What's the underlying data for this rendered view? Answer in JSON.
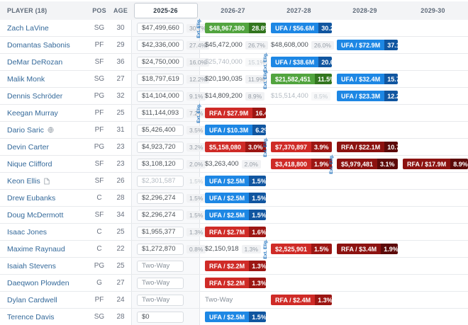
{
  "colors": {
    "ufa-main": "#1d87e4",
    "ufa-pct": "#1156a0",
    "opt-main": "#52a43f",
    "opt-pct": "#33761f",
    "rfa-main": "#cf2b27",
    "rfa-pct": "#9c1613",
    "rfa2-main": "#8c1210",
    "rfa2-pct": "#5c0a09",
    "link": "#34699a",
    "ext": "#1a6fbd",
    "header-bg": "#f3f4f6",
    "header-text": "#5f6b7a",
    "row-border": "#e8eaed",
    "active-col-bg": "#f8f9fb",
    "box-border": "#d8dce1",
    "muted": "#b3bac2",
    "value-text": "#4a5056",
    "pct-text": "#959da6"
  },
  "table": {
    "columns": [
      "PLAYER (18)",
      "POS",
      "AGE",
      "2025-26",
      "2026-27",
      "2027-28",
      "2028-29",
      "2029-30"
    ],
    "active_column": "2025-26",
    "ext_label": "Ext. Elig.",
    "rows": [
      {
        "player": "Zach LaVine",
        "pos": "SG",
        "age": "30",
        "icon": null,
        "years": [
          {
            "value": "$47,499,660",
            "pct": "30.7%",
            "style": "box",
            "ext": true
          },
          {
            "value": "$48,967,380",
            "pct": "28.8%",
            "style": "green"
          },
          {
            "value": "UFA / $56.6M",
            "pct": "30.2%",
            "style": "blue"
          },
          null,
          null
        ]
      },
      {
        "player": "Domantas Sabonis",
        "pos": "PF",
        "age": "29",
        "icon": null,
        "years": [
          {
            "value": "$42,336,000",
            "pct": "27.4%",
            "style": "box"
          },
          {
            "value": "$45,472,000",
            "pct": "26.7%",
            "style": "plain"
          },
          {
            "value": "$48,608,000",
            "pct": "26.0%",
            "style": "plain"
          },
          {
            "value": "UFA / $72.9M",
            "pct": "37.1%",
            "style": "blue"
          },
          null
        ]
      },
      {
        "player": "DeMar DeRozan",
        "pos": "SF",
        "age": "36",
        "icon": null,
        "years": [
          {
            "value": "$24,750,000",
            "pct": "16.0%",
            "style": "box"
          },
          {
            "value": "$25,740,000",
            "pct": "15.1%",
            "style": "muted",
            "ext": true
          },
          {
            "value": "UFA / $38.6M",
            "pct": "20.6%",
            "style": "blue"
          },
          null,
          null
        ]
      },
      {
        "player": "Malik Monk",
        "pos": "SG",
        "age": "27",
        "icon": null,
        "years": [
          {
            "value": "$18,797,619",
            "pct": "12.2%",
            "style": "box"
          },
          {
            "value": "$20,190,035",
            "pct": "11.9%",
            "style": "plain",
            "ext": true
          },
          {
            "value": "$21,582,451",
            "pct": "11.5%",
            "style": "green"
          },
          {
            "value": "UFA / $32.4M",
            "pct": "15.7%",
            "style": "blue"
          },
          null
        ]
      },
      {
        "player": "Dennis Schröder",
        "pos": "PG",
        "age": "32",
        "icon": null,
        "years": [
          {
            "value": "$14,104,000",
            "pct": "9.1%",
            "style": "box"
          },
          {
            "value": "$14,809,200",
            "pct": "8.9%",
            "style": "plain"
          },
          {
            "value": "$15,514,400",
            "pct": "8.5%",
            "style": "muted"
          },
          {
            "value": "UFA / $23.3M",
            "pct": "12.2%",
            "style": "blue"
          },
          null
        ]
      },
      {
        "player": "Keegan Murray",
        "pos": "PF",
        "age": "25",
        "icon": null,
        "years": [
          {
            "value": "$11,144,093",
            "pct": "7.2%",
            "style": "box",
            "ext": true
          },
          {
            "value": "RFA / $27.9M",
            "pct": "16.4%",
            "style": "red"
          },
          null,
          null,
          null
        ]
      },
      {
        "player": "Dario Saric",
        "pos": "PF",
        "age": "31",
        "icon": "globe-icon",
        "years": [
          {
            "value": "$5,426,400",
            "pct": "3.5%",
            "style": "box"
          },
          {
            "value": "UFA / $10.3M",
            "pct": "6.2%",
            "style": "blue"
          },
          null,
          null,
          null
        ]
      },
      {
        "player": "Devin Carter",
        "pos": "PG",
        "age": "23",
        "icon": null,
        "years": [
          {
            "value": "$4,923,720",
            "pct": "3.2%",
            "style": "box"
          },
          {
            "value": "$5,158,080",
            "pct": "3.0%",
            "style": "red",
            "ext": true
          },
          {
            "value": "$7,370,897",
            "pct": "3.9%",
            "style": "red"
          },
          {
            "value": "RFA / $22.1M",
            "pct": "10.7%",
            "style": "darkred"
          },
          null
        ]
      },
      {
        "player": "Nique Clifford",
        "pos": "SF",
        "age": "23",
        "icon": null,
        "years": [
          {
            "value": "$3,108,120",
            "pct": "2.0%",
            "style": "box"
          },
          {
            "value": "$3,263,400",
            "pct": "2.0%",
            "style": "plain"
          },
          {
            "value": "$3,418,800",
            "pct": "1.9%",
            "style": "red",
            "ext": true
          },
          {
            "value": "$5,979,481",
            "pct": "3.1%",
            "style": "darkred"
          },
          {
            "value": "RFA / $17.9M",
            "pct": "8.9%",
            "style": "darkred"
          }
        ]
      },
      {
        "player": "Keon Ellis",
        "pos": "SF",
        "age": "26",
        "icon": "contract-icon",
        "years": [
          {
            "value": "$2,301,587",
            "pct": "1.5%",
            "style": "box-muted"
          },
          {
            "value": "UFA / $2.5M",
            "pct": "1.5%",
            "style": "blue"
          },
          null,
          null,
          null
        ]
      },
      {
        "player": "Drew Eubanks",
        "pos": "C",
        "age": "28",
        "icon": null,
        "years": [
          {
            "value": "$2,296,274",
            "pct": "1.5%",
            "style": "box"
          },
          {
            "value": "UFA / $2.5M",
            "pct": "1.5%",
            "style": "blue"
          },
          null,
          null,
          null
        ]
      },
      {
        "player": "Doug McDermott",
        "pos": "SF",
        "age": "34",
        "icon": null,
        "years": [
          {
            "value": "$2,296,274",
            "pct": "1.5%",
            "style": "box"
          },
          {
            "value": "UFA / $2.5M",
            "pct": "1.5%",
            "style": "blue"
          },
          null,
          null,
          null
        ]
      },
      {
        "player": "Isaac Jones",
        "pos": "C",
        "age": "25",
        "icon": null,
        "years": [
          {
            "value": "$1,955,377",
            "pct": "1.3%",
            "style": "box"
          },
          {
            "value": "RFA / $2.7M",
            "pct": "1.6%",
            "style": "red"
          },
          null,
          null,
          null
        ]
      },
      {
        "player": "Maxime Raynaud",
        "pos": "C",
        "age": "22",
        "icon": null,
        "years": [
          {
            "value": "$1,272,870",
            "pct": "0.8%",
            "style": "box"
          },
          {
            "value": "$2,150,918",
            "pct": "1.3%",
            "style": "plain",
            "ext": true
          },
          {
            "value": "$2,525,901",
            "pct": "1.5%",
            "style": "red"
          },
          {
            "value": "RFA / $3.4M",
            "pct": "1.9%",
            "style": "darkred"
          },
          null
        ]
      },
      {
        "player": "Isaiah Stevens",
        "pos": "PG",
        "age": "25",
        "icon": null,
        "years": [
          {
            "value": "Two-Way",
            "pct": null,
            "style": "twoway-box"
          },
          {
            "value": "RFA / $2.2M",
            "pct": "1.3%",
            "style": "red"
          },
          null,
          null,
          null
        ]
      },
      {
        "player": "Daeqwon Plowden",
        "pos": "G",
        "age": "27",
        "icon": null,
        "years": [
          {
            "value": "Two-Way",
            "pct": null,
            "style": "twoway-box"
          },
          {
            "value": "RFA / $2.2M",
            "pct": "1.3%",
            "style": "red"
          },
          null,
          null,
          null
        ]
      },
      {
        "player": "Dylan Cardwell",
        "pos": "PF",
        "age": "24",
        "icon": null,
        "years": [
          {
            "value": "Two-Way",
            "pct": null,
            "style": "twoway-box"
          },
          {
            "value": "Two-Way",
            "pct": null,
            "style": "twoway-plain"
          },
          {
            "value": "RFA / $2.4M",
            "pct": "1.3%",
            "style": "red"
          },
          null,
          null
        ]
      },
      {
        "player": "Terence Davis",
        "pos": "SG",
        "age": "28",
        "icon": null,
        "years": [
          {
            "value": "$0",
            "pct": null,
            "style": "box"
          },
          {
            "value": "UFA / $2.5M",
            "pct": "1.5%",
            "style": "blue"
          },
          null,
          null,
          null
        ]
      }
    ]
  }
}
